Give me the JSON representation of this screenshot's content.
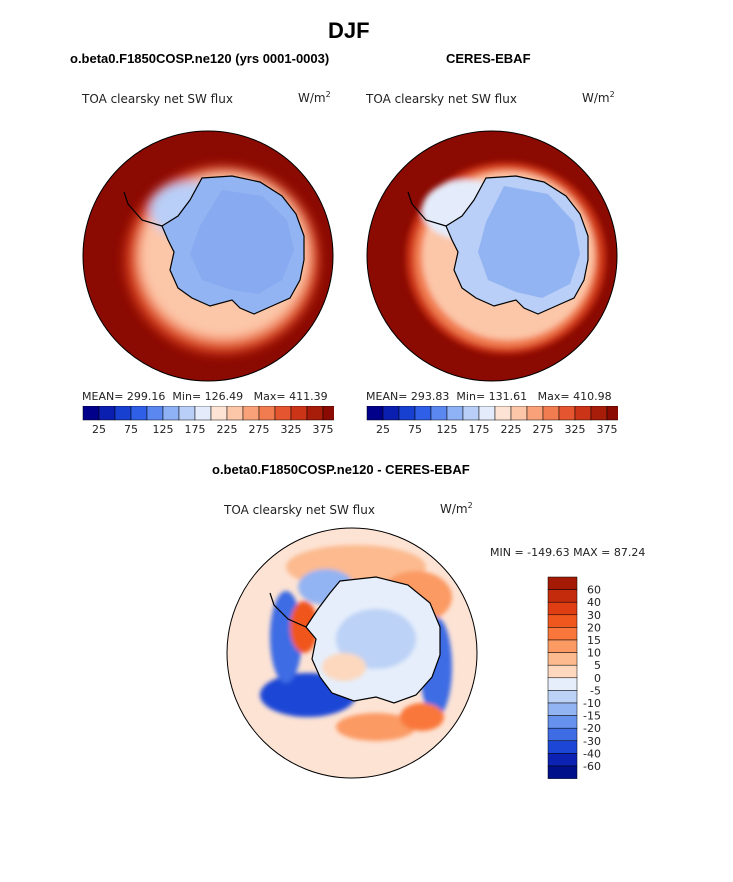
{
  "season_title": "DJF",
  "left_panel": {
    "case_label": "o.beta0.F1850COSP.ne120 (yrs 0001-0003)",
    "variable": "TOA clearsky net SW flux",
    "units_base": "W/m",
    "units_exp": "2",
    "stats": {
      "mean_label": "MEAN=",
      "mean": "299.16",
      "min_label": "Min=",
      "min": "126.49",
      "max_label": "Max=",
      "max": "411.39"
    }
  },
  "right_panel": {
    "case_label": "CERES-EBAF",
    "variable": "TOA clearsky net SW flux",
    "units_base": "W/m",
    "units_exp": "2",
    "stats": {
      "mean_label": "MEAN=",
      "mean": "293.83",
      "min_label": "Min=",
      "min": "131.61",
      "max_label": "Max=",
      "max": "410.98"
    }
  },
  "abs_colorbar": {
    "tick_labels": [
      "25",
      "75",
      "125",
      "175",
      "225",
      "275",
      "325",
      "375"
    ],
    "colors": [
      "#00008b",
      "#0a1fb0",
      "#1740d0",
      "#2e5fe6",
      "#5a87f0",
      "#8fb1f5",
      "#b9cff8",
      "#e4ecfb",
      "#fde3d4",
      "#fcc6a8",
      "#f9a27a",
      "#f17c50",
      "#e5552f",
      "#cc3418",
      "#a81c0a",
      "#8b0a02"
    ]
  },
  "diff_panel": {
    "title": "o.beta0.F1850COSP.ne120 - CERES-EBAF",
    "variable": "TOA clearsky net SW flux",
    "units_base": "W/m",
    "units_exp": "2",
    "minmax_text": "MIN = -149.63  MAX =   87.24",
    "colorbar_labels": [
      "60",
      "40",
      "30",
      "20",
      "15",
      "10",
      "5",
      "0",
      "-5",
      "-10",
      "-15",
      "-20",
      "-30",
      "-40",
      "-60"
    ],
    "colorbar_colors": [
      "#a51a04",
      "#c42b0c",
      "#df3e12",
      "#f0571f",
      "#f9773a",
      "#fb9a63",
      "#fcba8e",
      "#fdd8be",
      "#e6eefb",
      "#bcd2f6",
      "#93b4f2",
      "#6691ec",
      "#3e6ce4",
      "#1c47d6",
      "#0b22b3",
      "#00108a"
    ]
  },
  "chart_data": {
    "type": "heatmap",
    "projection": "south polar stereographic",
    "season": "DJF",
    "variable": "TOA clearsky net SW flux",
    "units": "W/m2",
    "maps": [
      {
        "name": "o.beta0.F1850COSP.ne120 (yrs 0001-0003)",
        "mean": 299.16,
        "min": 126.49,
        "max": 411.39,
        "contour_levels": [
          25,
          50,
          75,
          100,
          125,
          150,
          175,
          200,
          225,
          250,
          275,
          300,
          325,
          350,
          375
        ]
      },
      {
        "name": "CERES-EBAF",
        "mean": 293.83,
        "min": 131.61,
        "max": 410.98,
        "contour_levels": [
          25,
          50,
          75,
          100,
          125,
          150,
          175,
          200,
          225,
          250,
          275,
          300,
          325,
          350,
          375
        ]
      },
      {
        "name": "o.beta0.F1850COSP.ne120 - CERES-EBAF",
        "min": -149.63,
        "max": 87.24,
        "contour_levels": [
          -60,
          -40,
          -30,
          -20,
          -15,
          -10,
          -5,
          0,
          5,
          10,
          15,
          20,
          30,
          40,
          60
        ]
      }
    ]
  }
}
